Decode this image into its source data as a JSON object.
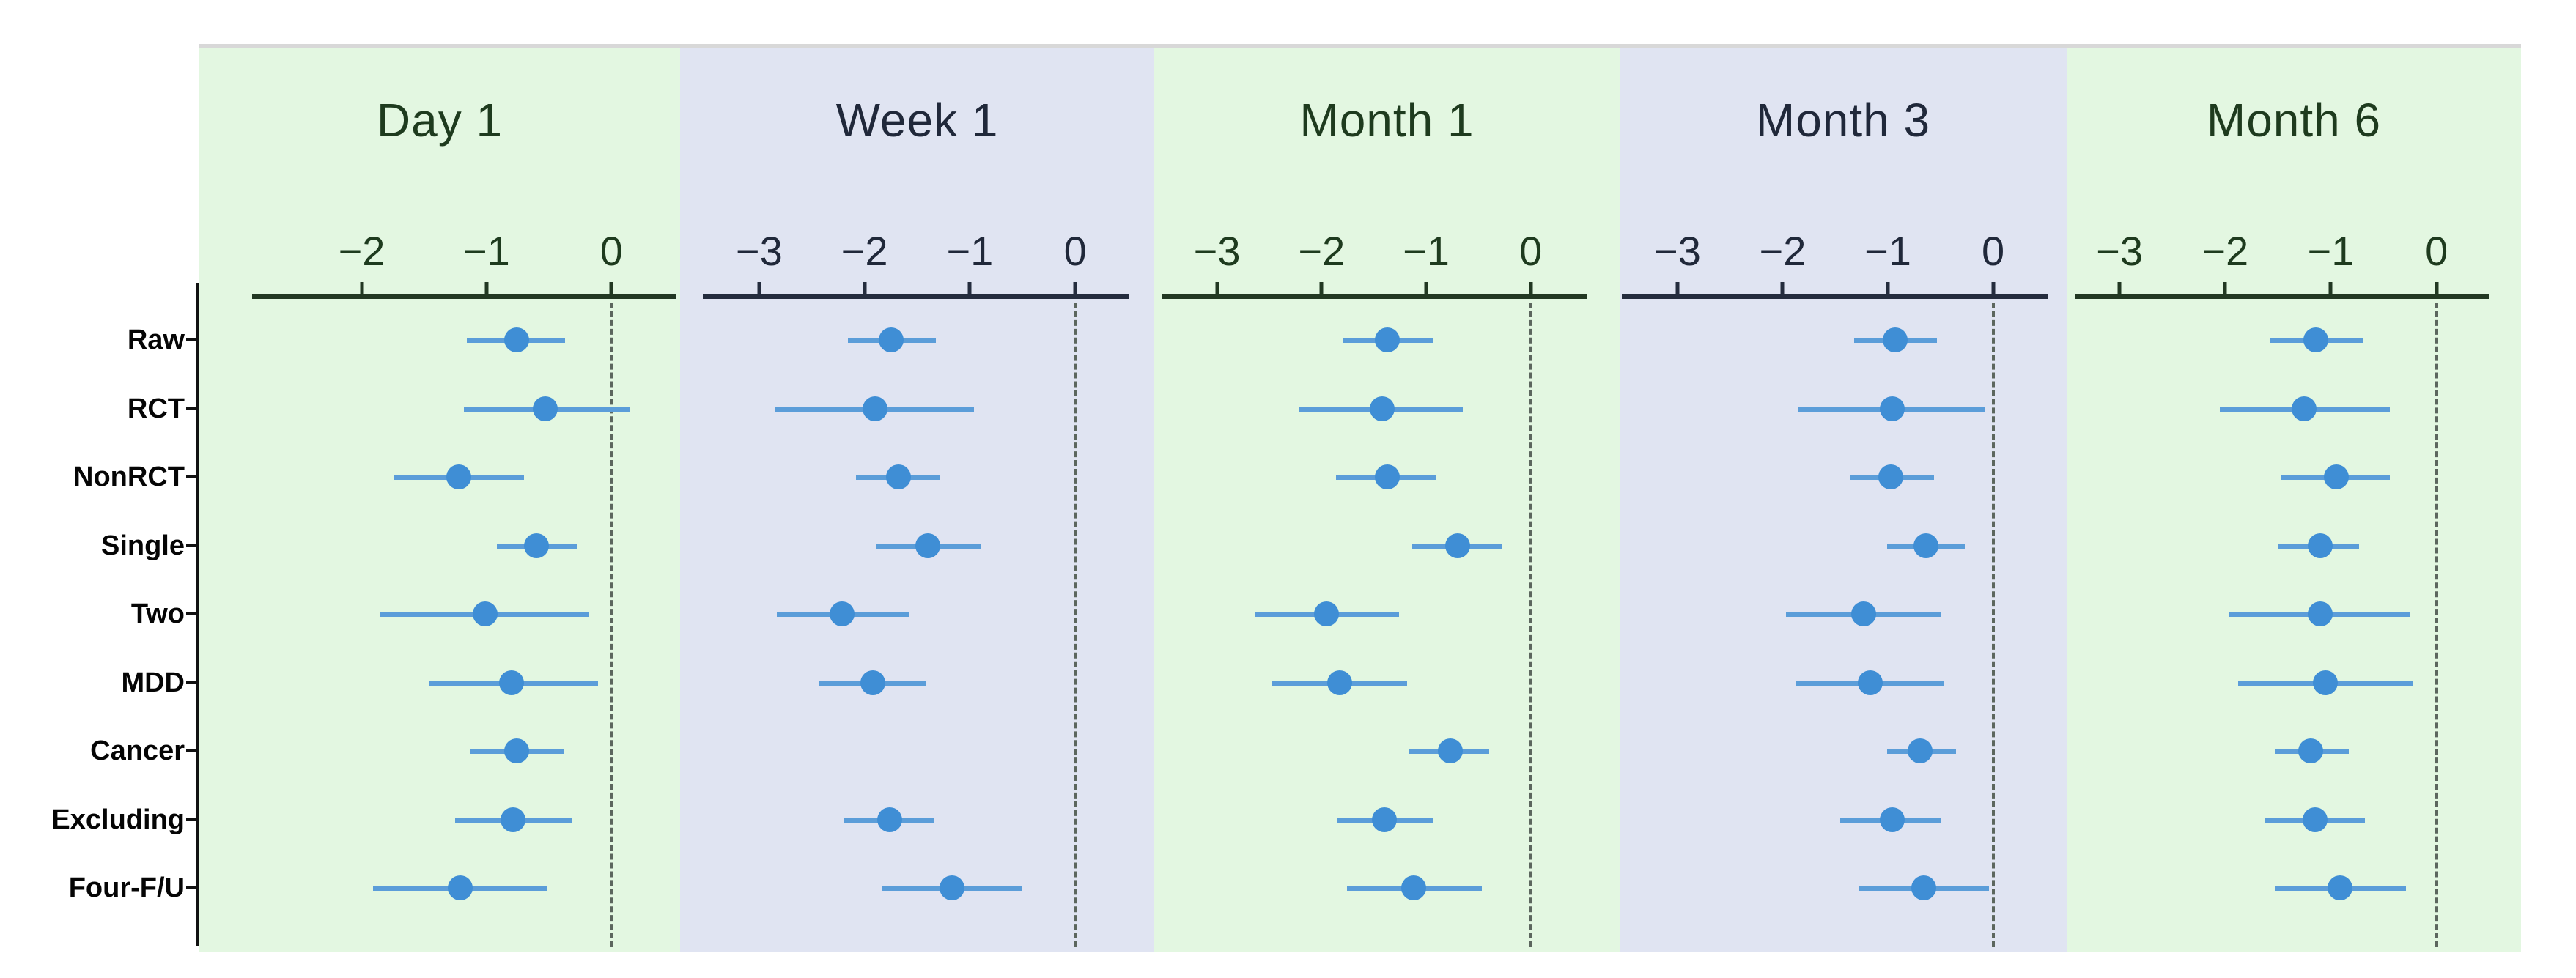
{
  "chart_data": {
    "type": "scatter",
    "subtype": "forest-plot-point-estimates-with-95ci",
    "orientation": "horizontal",
    "grid": "off",
    "legend": "none",
    "categories": [
      "Raw",
      "RCT",
      "NonRCT",
      "Single",
      "Two",
      "MDD",
      "Cancer",
      "Excluding",
      "Four-F/U"
    ],
    "marker_color": "#3f8ed5",
    "ci_color": "#5b9dd9",
    "zero_reference_line": 0,
    "panels": [
      {
        "title": "Day 1",
        "bg": "#e3f7e1",
        "text_color": "#1e3b1e",
        "axis_color": "#223822",
        "xlim": [
          -3.3,
          0.55
        ],
        "ticks": [
          -2,
          -1,
          0
        ],
        "tick_labels": [
          "−2",
          "−1",
          "0"
        ],
        "estimates": [
          -0.76,
          -0.53,
          -1.22,
          -0.6,
          -1.01,
          -0.8,
          -0.76,
          -0.79,
          -1.21
        ],
        "ci_low": [
          -1.16,
          -1.18,
          -1.74,
          -0.92,
          -1.85,
          -1.46,
          -1.13,
          -1.25,
          -1.91
        ],
        "ci_high": [
          -0.37,
          0.15,
          -0.7,
          -0.28,
          -0.18,
          -0.11,
          -0.38,
          -0.31,
          -0.52
        ]
      },
      {
        "title": "Week 1",
        "bg": "#e0e4f2",
        "text_color": "#20283a",
        "axis_color": "#242c3e",
        "xlim": [
          -3.75,
          0.75
        ],
        "ticks": [
          -3,
          -2,
          -1,
          0
        ],
        "tick_labels": [
          "−3",
          "−2",
          "−1",
          "0"
        ],
        "estimates": [
          -1.75,
          -1.9,
          -1.68,
          -1.4,
          -2.21,
          -1.92,
          null,
          -1.76,
          -1.17
        ],
        "ci_low": [
          -2.16,
          -2.85,
          -2.08,
          -1.89,
          -2.83,
          -2.43,
          null,
          -2.2,
          -1.84
        ],
        "ci_high": [
          -1.32,
          -0.96,
          -1.28,
          -0.9,
          -1.57,
          -1.42,
          null,
          -1.34,
          -0.5
        ]
      },
      {
        "title": "Month 1",
        "bg": "#e3f7e1",
        "text_color": "#1e3b1e",
        "axis_color": "#223822",
        "xlim": [
          -3.6,
          0.85
        ],
        "ticks": [
          -3,
          -2,
          -1,
          0
        ],
        "tick_labels": [
          "−3",
          "−2",
          "−1",
          "0"
        ],
        "estimates": [
          -1.37,
          -1.42,
          -1.37,
          -0.7,
          -1.95,
          -1.83,
          -0.77,
          -1.4,
          -1.12
        ],
        "ci_low": [
          -1.79,
          -2.21,
          -1.86,
          -1.13,
          -2.64,
          -2.47,
          -1.17,
          -1.85,
          -1.76
        ],
        "ci_high": [
          -0.94,
          -0.65,
          -0.91,
          -0.27,
          -1.26,
          -1.18,
          -0.4,
          -0.94,
          -0.47
        ]
      },
      {
        "title": "Month 3",
        "bg": "#e0e4f2",
        "text_color": "#20283a",
        "axis_color": "#242c3e",
        "xlim": [
          -3.55,
          0.7
        ],
        "ticks": [
          -3,
          -2,
          -1,
          0
        ],
        "tick_labels": [
          "−3",
          "−2",
          "−1",
          "0"
        ],
        "estimates": [
          -0.93,
          -0.96,
          -0.97,
          -0.64,
          -1.23,
          -1.17,
          -0.69,
          -0.96,
          -0.66
        ],
        "ci_low": [
          -1.32,
          -1.85,
          -1.36,
          -1.01,
          -1.97,
          -1.88,
          -1.01,
          -1.45,
          -1.27
        ],
        "ci_high": [
          -0.53,
          -0.07,
          -0.56,
          -0.27,
          -0.5,
          -0.47,
          -0.35,
          -0.5,
          -0.04
        ]
      },
      {
        "title": "Month 6",
        "bg": "#e3f7e1",
        "text_color": "#1e3b1e",
        "axis_color": "#223822",
        "xlim": [
          -3.5,
          0.8
        ],
        "ticks": [
          -3,
          -2,
          -1,
          0
        ],
        "tick_labels": [
          "−3",
          "−2",
          "−1",
          "0"
        ],
        "estimates": [
          -1.14,
          -1.25,
          -0.95,
          -1.1,
          -1.1,
          -1.05,
          -1.19,
          -1.15,
          -0.91
        ],
        "ci_low": [
          -1.57,
          -2.05,
          -1.47,
          -1.5,
          -1.96,
          -1.88,
          -1.53,
          -1.63,
          -1.53
        ],
        "ci_high": [
          -0.69,
          -0.44,
          -0.44,
          -0.73,
          -0.25,
          -0.22,
          -0.83,
          -0.68,
          -0.29
        ]
      }
    ]
  }
}
